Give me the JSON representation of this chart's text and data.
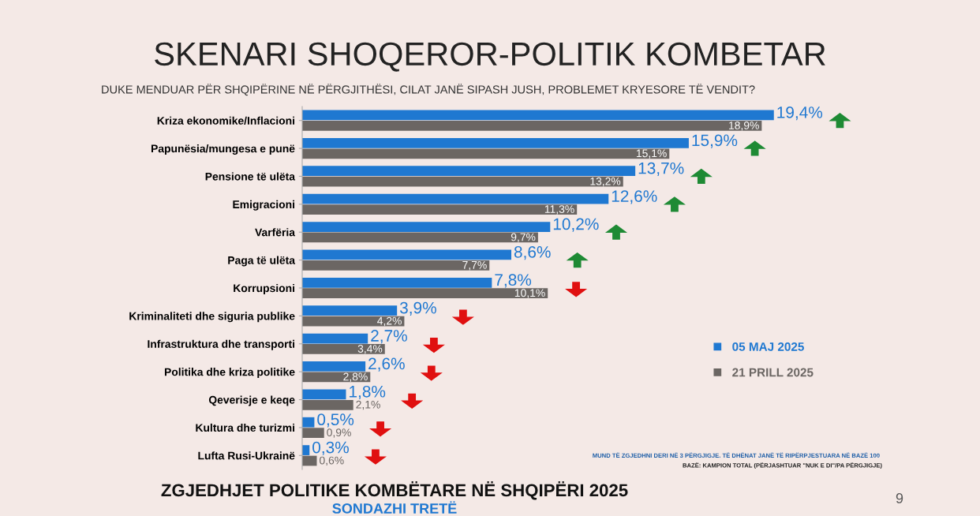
{
  "chart_data": {
    "type": "bar",
    "orientation": "horizontal",
    "title": "SKENARI SHOQEROR-POLITIK KOMBETAR",
    "subtitle": "DUKE MENDUAR PËR SHQIPËRINE NË PËRGJITHËSI, CILAT JANË SIPASH JUSH, PROBLEMET KRYESORE TË VENDIT?",
    "categories": [
      "Kriza ekonomike/Inflacioni",
      "Papunësia/mungesa e punë",
      "Pensione të ulëta",
      "Emigracioni",
      "Varfëria",
      "Paga të ulëta",
      "Korrupsioni",
      "Kriminaliteti dhe siguria publike",
      "Infrastruktura dhe transporti",
      "Politika dhe kriza politike",
      "Qeverisje e keqe",
      "Kultura dhe turizmi",
      "Lufta Rusi-Ukrainë"
    ],
    "series": [
      {
        "name": "05 MAJ 2025",
        "color": "#1f78d1",
        "values": [
          19.4,
          15.9,
          13.7,
          12.6,
          10.2,
          8.6,
          7.8,
          3.9,
          2.7,
          2.6,
          1.8,
          0.5,
          0.3
        ],
        "value_labels": [
          "19,4%",
          "15,9%",
          "13,7%",
          "12,6%",
          "10,2%",
          "8,6%",
          "7,8%",
          "3,9%",
          "2,7%",
          "2,6%",
          "1,8%",
          "0,5%",
          "0,3%"
        ]
      },
      {
        "name": "21 PRILL 2025",
        "color": "#6b6663",
        "values": [
          18.9,
          15.1,
          13.2,
          11.3,
          9.7,
          7.7,
          10.1,
          4.2,
          3.4,
          2.8,
          2.1,
          0.9,
          0.6
        ],
        "value_labels": [
          "18,9%",
          "15,1%",
          "13,2%",
          "11,3%",
          "9,7%",
          "7,7%",
          "10,1%",
          "4,2%",
          "3,4%",
          "2,8%",
          "2,1%",
          "0,9%",
          "0,6%"
        ]
      }
    ],
    "legend": "right",
    "grid": false,
    "annotations": [
      "MUND TË ZGJEDHNI DERI NË 3 PËRGJIGJE. TË DHËNAT JANË TË RIPËRPJESTUARA NË BAZË 100",
      "BAZË: KAMPION TOTAL (PËRJASHTUAR \"NUK E DI\"/PA PËRGJIGJE)",
      "ZGJEDHJET POLITIKE KOMBËTARE NË SHQIPËRI 2025",
      "SONDAZHI TRETË",
      "9"
    ]
  }
}
